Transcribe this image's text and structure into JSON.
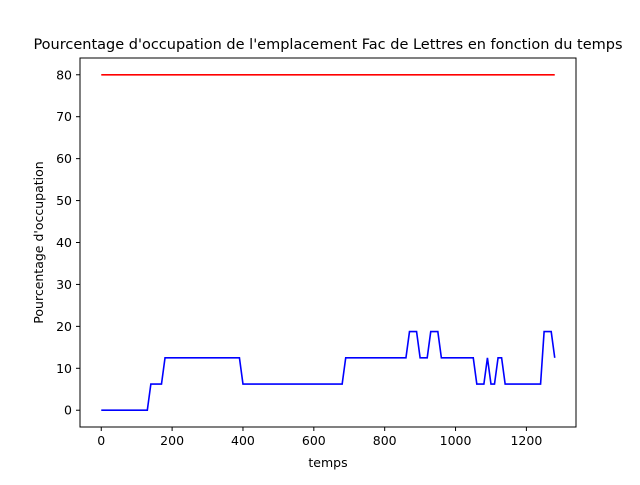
{
  "chart_data": {
    "type": "line",
    "title": "Pourcentage d'occupation de l'emplacement Fac de Lettres en fonction du temps",
    "xlabel": "temps",
    "ylabel": "Pourcentage d'occupation",
    "xlim": [
      -60,
      1340
    ],
    "ylim": [
      -4,
      84
    ],
    "x_ticks": [
      0,
      200,
      400,
      600,
      800,
      1000,
      1200
    ],
    "y_ticks": [
      0,
      10,
      20,
      30,
      40,
      50,
      60,
      70,
      80
    ],
    "grid": false,
    "legend": "none",
    "series": [
      {
        "color": "#ff0000",
        "x": [
          0,
          1280
        ],
        "y": [
          80,
          80
        ]
      },
      {
        "color": "#0000ff",
        "x": [
          0,
          130,
          140,
          170,
          180,
          390,
          400,
          680,
          690,
          860,
          870,
          890,
          900,
          920,
          930,
          950,
          960,
          1050,
          1060,
          1080,
          1090,
          1100,
          1110,
          1120,
          1130,
          1140,
          1240,
          1250,
          1270,
          1280
        ],
        "y": [
          0,
          0,
          6.25,
          6.25,
          12.5,
          12.5,
          6.25,
          6.25,
          12.5,
          12.5,
          18.75,
          18.75,
          12.5,
          12.5,
          18.75,
          18.75,
          12.5,
          12.5,
          6.25,
          6.25,
          12.5,
          6.25,
          6.25,
          12.5,
          12.5,
          6.25,
          6.25,
          18.75,
          18.75,
          12.5
        ]
      }
    ]
  }
}
